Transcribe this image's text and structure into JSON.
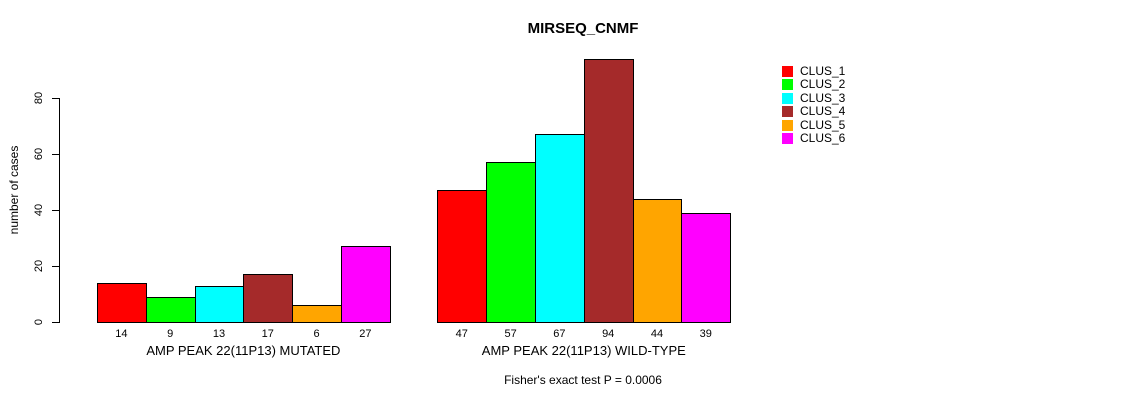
{
  "title": "MIRSEQ_CNMF",
  "subtitle": "Fisher's exact test P = 0.0006",
  "ylabel": "number of cases",
  "colors": {
    "background": "#FFFFFF",
    "text": "#000000",
    "bar_border": "#000000"
  },
  "legend": {
    "items": [
      {
        "label": "CLUS_1",
        "color": "#FF0000"
      },
      {
        "label": "CLUS_2",
        "color": "#00FF00"
      },
      {
        "label": "CLUS_3",
        "color": "#00FFFF"
      },
      {
        "label": "CLUS_4",
        "color": "#A52A2A"
      },
      {
        "label": "CLUS_5",
        "color": "#FFA500"
      },
      {
        "label": "CLUS_6",
        "color": "#FF00FF"
      }
    ]
  },
  "chart_data": {
    "type": "bar",
    "title": "MIRSEQ_CNMF",
    "ylabel": "number of cases",
    "xlabel": "",
    "annotation": "Fisher's exact test P = 0.0006",
    "yticks": [
      0,
      20,
      40,
      60,
      80
    ],
    "ylim": [
      0,
      95
    ],
    "grid": false,
    "legend_position": "top-right",
    "series_names": [
      "CLUS_1",
      "CLUS_2",
      "CLUS_3",
      "CLUS_4",
      "CLUS_5",
      "CLUS_6"
    ],
    "series_colors": [
      "#FF0000",
      "#00FF00",
      "#00FFFF",
      "#A52A2A",
      "#FFA500",
      "#FF00FF"
    ],
    "groups": [
      {
        "label": "AMP PEAK 22(11P13) MUTATED",
        "values": [
          14,
          9,
          13,
          17,
          6,
          27
        ]
      },
      {
        "label": "AMP PEAK 22(11P13) WILD-TYPE",
        "values": [
          47,
          57,
          67,
          94,
          44,
          39
        ]
      }
    ]
  }
}
